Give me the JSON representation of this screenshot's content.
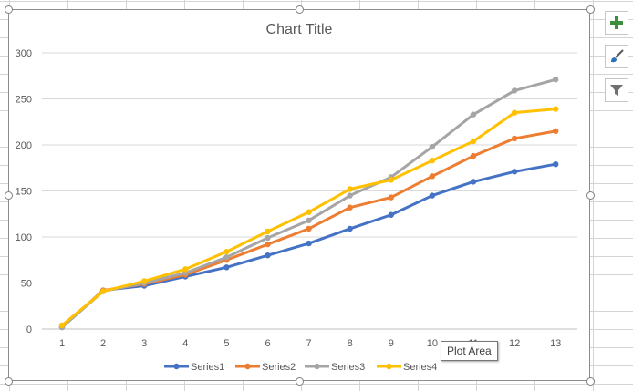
{
  "chart_data": {
    "type": "line",
    "title": "Chart Title",
    "x": [
      1,
      2,
      3,
      4,
      5,
      6,
      7,
      8,
      9,
      10,
      11,
      12,
      13
    ],
    "ylim": [
      0,
      300
    ],
    "yticks": [
      0,
      50,
      100,
      150,
      200,
      250,
      300
    ],
    "grid": true,
    "legend": "bottom",
    "series": [
      {
        "name": "Series1",
        "color": "#4472c4",
        "values": [
          2,
          42,
          47,
          57,
          67,
          80,
          93,
          109,
          124,
          145,
          160,
          171,
          179
        ]
      },
      {
        "name": "Series2",
        "color": "#ed7d31",
        "values": [
          2,
          42,
          49,
          59,
          75,
          92,
          109,
          132,
          143,
          166,
          188,
          207,
          215
        ]
      },
      {
        "name": "Series3",
        "color": "#a5a5a5",
        "values": [
          2,
          41,
          50,
          61,
          78,
          99,
          118,
          145,
          165,
          198,
          233,
          259,
          271
        ]
      },
      {
        "name": "Series4",
        "color": "#ffc000",
        "values": [
          4,
          41,
          52,
          65,
          84,
          106,
          127,
          152,
          162,
          183,
          204,
          235,
          239
        ]
      }
    ]
  },
  "tooltip": {
    "text": "Plot Area"
  },
  "side_buttons": [
    {
      "icon": "plus-icon",
      "label": "Chart Elements"
    },
    {
      "icon": "brush-icon",
      "label": "Chart Styles"
    },
    {
      "icon": "filter-icon",
      "label": "Chart Filters"
    }
  ]
}
